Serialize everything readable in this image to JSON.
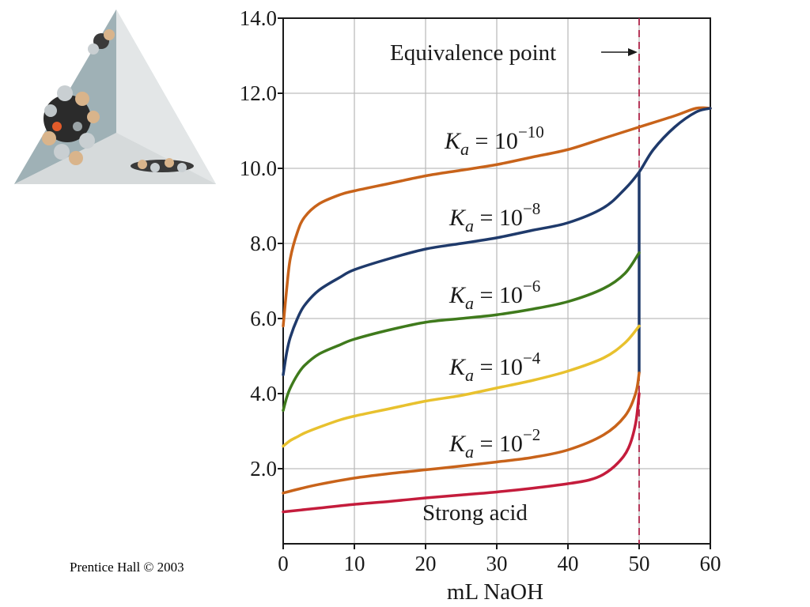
{
  "credit": "Prentice Hall © 2003",
  "colors": {
    "background": "#ffffff",
    "grid": "#bdbdbd",
    "axis": "#1a1a1a",
    "equivalence_line": "#b0254a",
    "equivalence_tick": "#b0254a"
  },
  "chart_data": {
    "type": "line",
    "xlabel": "mL NaOH",
    "ylabel": "",
    "xlim": [
      0,
      60
    ],
    "ylim": [
      0,
      14
    ],
    "x_ticks": [
      "0",
      "10",
      "20",
      "30",
      "40",
      "50",
      "60"
    ],
    "y_ticks": [
      "2.0",
      "4.0",
      "6.0",
      "8.0",
      "10.0",
      "12.0",
      "14.0"
    ],
    "grid": true,
    "annotations": [
      {
        "text": "Equivalence point",
        "arrow_to_x": 50,
        "y": 13.0
      }
    ],
    "equivalence_x": 50,
    "series": [
      {
        "name": "Ka = 10^-10",
        "color": "#c8631a",
        "exponent": "−10",
        "x": [
          0,
          0.5,
          1,
          2,
          3,
          5,
          8,
          10,
          15,
          20,
          25,
          30,
          35,
          40,
          45,
          50,
          55,
          58,
          60
        ],
        "y": [
          5.8,
          6.8,
          7.6,
          8.3,
          8.7,
          9.05,
          9.3,
          9.4,
          9.6,
          9.8,
          9.95,
          10.1,
          10.3,
          10.5,
          10.8,
          11.1,
          11.4,
          11.6,
          11.6
        ]
      },
      {
        "name": "Ka = 10^-8",
        "color": "#1f3a6b",
        "exponent": "−8",
        "x": [
          0,
          0.5,
          1,
          2,
          3,
          5,
          8,
          10,
          15,
          20,
          25,
          30,
          35,
          40,
          45,
          48,
          50,
          52,
          55,
          58,
          60
        ],
        "y": [
          4.5,
          5.1,
          5.5,
          6.0,
          6.35,
          6.75,
          7.1,
          7.3,
          7.6,
          7.85,
          8.0,
          8.15,
          8.35,
          8.55,
          8.95,
          9.45,
          9.9,
          10.5,
          11.1,
          11.5,
          11.6
        ]
      },
      {
        "name": "Ka = 10^-6",
        "color": "#3f7a1c",
        "exponent": "−6",
        "x": [
          0,
          0.5,
          1,
          2,
          3,
          5,
          8,
          10,
          15,
          20,
          25,
          30,
          35,
          40,
          45,
          48,
          50
        ],
        "y": [
          3.55,
          3.9,
          4.15,
          4.5,
          4.75,
          5.05,
          5.3,
          5.45,
          5.7,
          5.9,
          6.0,
          6.1,
          6.25,
          6.45,
          6.8,
          7.2,
          7.75
        ]
      },
      {
        "name": "Ka = 10^-4",
        "color": "#e8c12e",
        "exponent": "−4",
        "x": [
          0,
          1,
          2,
          3,
          5,
          8,
          10,
          15,
          20,
          25,
          30,
          35,
          40,
          45,
          48,
          50
        ],
        "y": [
          2.6,
          2.75,
          2.85,
          2.95,
          3.1,
          3.3,
          3.4,
          3.6,
          3.8,
          3.95,
          4.15,
          4.35,
          4.6,
          4.95,
          5.35,
          5.8
        ]
      },
      {
        "name": "Ka = 10^-2",
        "color": "#c8631a",
        "exponent": "−2",
        "x": [
          0,
          2,
          5,
          10,
          15,
          20,
          25,
          30,
          35,
          40,
          45,
          48,
          49.5,
          50
        ],
        "y": [
          1.35,
          1.45,
          1.58,
          1.75,
          1.87,
          1.97,
          2.07,
          2.18,
          2.3,
          2.5,
          2.9,
          3.4,
          4.0,
          4.55
        ]
      },
      {
        "name": "Strong acid",
        "color": "#c41c3c",
        "exponent": "",
        "x": [
          0,
          5,
          10,
          15,
          20,
          25,
          30,
          35,
          40,
          43,
          45,
          47,
          48.5,
          49.5,
          50
        ],
        "y": [
          0.85,
          0.95,
          1.05,
          1.13,
          1.22,
          1.3,
          1.38,
          1.48,
          1.6,
          1.7,
          1.85,
          2.15,
          2.55,
          3.2,
          4.0
        ]
      }
    ],
    "vertical_jump": {
      "x": 50,
      "y_from": 4.55,
      "y_to": 9.9,
      "color": "#1f3a6b"
    }
  },
  "labels": {
    "ka_prefix": "K",
    "ka_sub": "a",
    "ka_eq": " = 10",
    "strong_acid": "Strong acid",
    "equivalence_point": "Equivalence point"
  }
}
